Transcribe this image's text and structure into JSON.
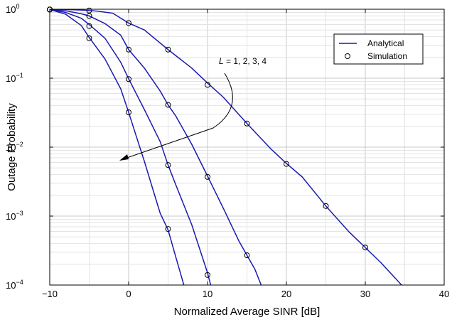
{
  "chart_data": {
    "type": "line",
    "title": "",
    "xlabel": "Normalized Average SINR [dB]",
    "ylabel": "Outage Probability",
    "xlim": [
      -10,
      40
    ],
    "ylim": [
      0.0001,
      1
    ],
    "y_scale": "log",
    "grid": true,
    "x_ticks": [
      -10,
      0,
      10,
      20,
      30,
      40
    ],
    "x_tick_labels": [
      "−10",
      "0",
      "10",
      "20",
      "30",
      "40"
    ],
    "y_ticks": [
      {
        "value": 1,
        "base": "10",
        "exp": "0"
      },
      {
        "value": 0.1,
        "base": "10",
        "exp": "−1"
      },
      {
        "value": 0.01,
        "base": "10",
        "exp": "−2"
      },
      {
        "value": 0.001,
        "base": "10",
        "exp": "−3"
      },
      {
        "value": 0.0001,
        "base": "10",
        "exp": "−4"
      }
    ],
    "legend": {
      "placement": "top-right",
      "entries": [
        {
          "label": "Analytical",
          "marker": "line"
        },
        {
          "label": "Simulation",
          "marker": "circle"
        }
      ]
    },
    "annotation": {
      "italic": "L",
      "text": " = 1, 2, 3, 4"
    },
    "line_color": "#1a1ab0",
    "series": [
      {
        "L": 1,
        "curve": [
          [
            -10,
            0.995
          ],
          [
            -8,
            0.99
          ],
          [
            -6,
            0.975
          ],
          [
            -5,
            0.96
          ],
          [
            -4,
            0.94
          ],
          [
            -2,
            0.875
          ],
          [
            0,
            0.63
          ],
          [
            2,
            0.5
          ],
          [
            5,
            0.26
          ],
          [
            8,
            0.14
          ],
          [
            10,
            0.085
          ],
          [
            12,
            0.053
          ],
          [
            15,
            0.022
          ],
          [
            18,
            0.0095
          ],
          [
            20,
            0.0058
          ],
          [
            22,
            0.0037
          ],
          [
            25,
            0.0014
          ],
          [
            28,
            0.00058
          ],
          [
            30,
            0.00035
          ],
          [
            32,
            0.00021
          ],
          [
            34.6,
            0.0001
          ]
        ],
        "simulation": [
          [
            -10,
            0.99
          ],
          [
            -5,
            0.96
          ],
          [
            0,
            0.63
          ],
          [
            5,
            0.26
          ],
          [
            10,
            0.08
          ],
          [
            15,
            0.022
          ],
          [
            20,
            0.0057
          ],
          [
            25,
            0.0014
          ],
          [
            30,
            0.00035
          ]
        ]
      },
      {
        "L": 2,
        "curve": [
          [
            -10,
            0.99
          ],
          [
            -8,
            0.95
          ],
          [
            -6,
            0.86
          ],
          [
            -5,
            0.8
          ],
          [
            -3,
            0.62
          ],
          [
            -1,
            0.42
          ],
          [
            0,
            0.26
          ],
          [
            2,
            0.14
          ],
          [
            4,
            0.065
          ],
          [
            5,
            0.041
          ],
          [
            6,
            0.028
          ],
          [
            8,
            0.011
          ],
          [
            10,
            0.0038
          ],
          [
            12,
            0.0013
          ],
          [
            14,
            0.00043
          ],
          [
            15,
            0.00027
          ],
          [
            16,
            0.00017
          ],
          [
            16.8,
            0.0001
          ]
        ],
        "simulation": [
          [
            -10,
            0.99
          ],
          [
            -5,
            0.8
          ],
          [
            0,
            0.26
          ],
          [
            5,
            0.041
          ],
          [
            10,
            0.0037
          ],
          [
            15,
            0.00027
          ]
        ]
      },
      {
        "L": 3,
        "curve": [
          [
            -10,
            0.99
          ],
          [
            -8,
            0.9
          ],
          [
            -6,
            0.74
          ],
          [
            -5,
            0.6
          ],
          [
            -3,
            0.38
          ],
          [
            -1,
            0.17
          ],
          [
            0,
            0.098
          ],
          [
            2,
            0.035
          ],
          [
            4,
            0.012
          ],
          [
            5,
            0.0055
          ],
          [
            6,
            0.0028
          ],
          [
            8,
            0.00075
          ],
          [
            10,
            0.00015
          ],
          [
            10.4,
            0.0001
          ]
        ],
        "simulation": [
          [
            -10,
            0.99
          ],
          [
            -5,
            0.57
          ],
          [
            0,
            0.097
          ],
          [
            5,
            0.0055
          ],
          [
            10,
            0.00014
          ]
        ]
      },
      {
        "L": 4,
        "curve": [
          [
            -10,
            0.99
          ],
          [
            -8,
            0.85
          ],
          [
            -6,
            0.58
          ],
          [
            -5,
            0.39
          ],
          [
            -3,
            0.19
          ],
          [
            -1,
            0.07
          ],
          [
            0,
            0.032
          ],
          [
            1,
            0.014
          ],
          [
            2,
            0.0062
          ],
          [
            3,
            0.0026
          ],
          [
            4,
            0.0011
          ],
          [
            5,
            0.00063
          ],
          [
            6,
            0.00025
          ],
          [
            7,
            0.0001
          ]
        ],
        "simulation": [
          [
            -10,
            0.99
          ],
          [
            -5,
            0.38
          ],
          [
            0,
            0.032
          ],
          [
            5,
            0.00065
          ]
        ]
      }
    ]
  }
}
